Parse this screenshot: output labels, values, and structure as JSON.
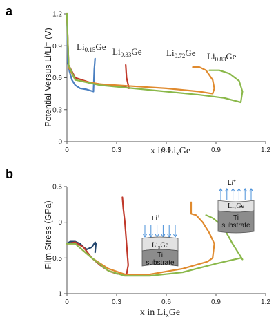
{
  "chart_data": [
    {
      "panel_label": "a",
      "type": "line",
      "ylabel": "Potential Versus Li/Li⁺ (V)",
      "xlabel": "x in LiₓGe",
      "xlim": [
        0,
        1.2
      ],
      "ylim": [
        0,
        1.2
      ],
      "xticks": [
        "0",
        "0.3",
        "0.6",
        "0.9",
        "1.2"
      ],
      "yticks": [
        "0",
        "0.3",
        "0.6",
        "0.9",
        "1.2"
      ],
      "series": [
        {
          "color": "#4a7fc0",
          "x": [
            0,
            0.005,
            0.015,
            0.03,
            0.05,
            0.08,
            0.12,
            0.16,
            0.162,
            0.165,
            0.17
          ],
          "y": [
            1.2,
            0.75,
            0.66,
            0.58,
            0.53,
            0.5,
            0.49,
            0.47,
            0.55,
            0.68,
            0.78
          ]
        },
        {
          "color": "#c0392b",
          "x": [
            0,
            0.01,
            0.05,
            0.15,
            0.25,
            0.35,
            0.375,
            0.36,
            0.355
          ],
          "y": [
            1.2,
            0.72,
            0.6,
            0.55,
            0.53,
            0.515,
            0.5,
            0.6,
            0.72
          ]
        },
        {
          "color": "#e08a2e",
          "x": [
            0,
            0.01,
            0.05,
            0.2,
            0.4,
            0.6,
            0.8,
            0.88,
            0.89,
            0.88,
            0.84,
            0.8,
            0.76
          ],
          "y": [
            1.2,
            0.7,
            0.58,
            0.54,
            0.52,
            0.5,
            0.47,
            0.45,
            0.5,
            0.58,
            0.67,
            0.7,
            0.7
          ]
        },
        {
          "color": "#8ab84a",
          "x": [
            0,
            0.01,
            0.05,
            0.2,
            0.4,
            0.6,
            0.8,
            0.95,
            1.05,
            1.06,
            1.04,
            0.98,
            0.92,
            0.86
          ],
          "y": [
            1.2,
            0.72,
            0.58,
            0.53,
            0.5,
            0.47,
            0.44,
            0.41,
            0.37,
            0.47,
            0.57,
            0.64,
            0.67,
            0.67
          ]
        }
      ],
      "annotations": [
        {
          "base": "Li",
          "sub": "0.15",
          "tail": "Ge"
        },
        {
          "base": "Li",
          "sub": "0.33",
          "tail": "Ge"
        },
        {
          "base": "Li",
          "sub": "0.72",
          "tail": "Ge"
        },
        {
          "base": "Li",
          "sub": "0.83",
          "tail": "Ge"
        }
      ]
    },
    {
      "panel_label": "b",
      "type": "line",
      "ylabel": "Film Stress (GPa)",
      "xlabel": "x in LiₓGe",
      "xlim": [
        0,
        1.2
      ],
      "ylim": [
        -1,
        0.5
      ],
      "xticks": [
        "0",
        "0.3",
        "0.6",
        "0.9",
        "1.2"
      ],
      "yticks": [
        "-1",
        "-0.5",
        "0",
        "0.5"
      ],
      "series": [
        {
          "color": "#24466e",
          "x": [
            0,
            0.02,
            0.05,
            0.08,
            0.1,
            0.12,
            0.15,
            0.17,
            0.175,
            0.17
          ],
          "y": [
            -0.3,
            -0.27,
            -0.27,
            -0.3,
            -0.35,
            -0.38,
            -0.35,
            -0.28,
            -0.3,
            -0.42
          ]
        },
        {
          "color": "#c0392b",
          "x": [
            0,
            0.05,
            0.1,
            0.15,
            0.2,
            0.25,
            0.3,
            0.36,
            0.37,
            0.36,
            0.35,
            0.34,
            0.335
          ],
          "y": [
            -0.3,
            -0.28,
            -0.35,
            -0.5,
            -0.6,
            -0.68,
            -0.72,
            -0.73,
            -0.6,
            -0.3,
            0.0,
            0.2,
            0.35
          ]
        },
        {
          "color": "#e08a2e",
          "x": [
            0,
            0.05,
            0.15,
            0.25,
            0.35,
            0.5,
            0.7,
            0.85,
            0.88,
            0.89,
            0.86,
            0.82,
            0.78,
            0.75,
            0.75
          ],
          "y": [
            -0.3,
            -0.3,
            -0.5,
            -0.65,
            -0.73,
            -0.73,
            -0.65,
            -0.55,
            -0.5,
            -0.3,
            -0.15,
            0.0,
            0.1,
            0.12,
            0.28
          ]
        },
        {
          "color": "#8ab84a",
          "x": [
            0,
            0.05,
            0.15,
            0.25,
            0.35,
            0.5,
            0.7,
            0.9,
            1.05,
            1.06,
            1.0,
            0.94,
            0.88,
            0.84
          ],
          "y": [
            -0.3,
            -0.3,
            -0.5,
            -0.68,
            -0.75,
            -0.75,
            -0.7,
            -0.58,
            -0.5,
            -0.52,
            -0.3,
            -0.05,
            0.06,
            0.1
          ]
        }
      ],
      "insets": [
        {
          "ion": "Li",
          "sup": "+",
          "layer_base": "Li",
          "layer_sub": "x",
          "layer_tail": "Ge",
          "substrate": [
            "Ti",
            "substrate"
          ],
          "arrows": "down"
        },
        {
          "ion": "Li",
          "sup": "+",
          "layer_base": "Li",
          "layer_sub": "x",
          "layer_tail": "Ge",
          "substrate": [
            "Ti",
            "substrate"
          ],
          "arrows": "up"
        }
      ]
    }
  ]
}
